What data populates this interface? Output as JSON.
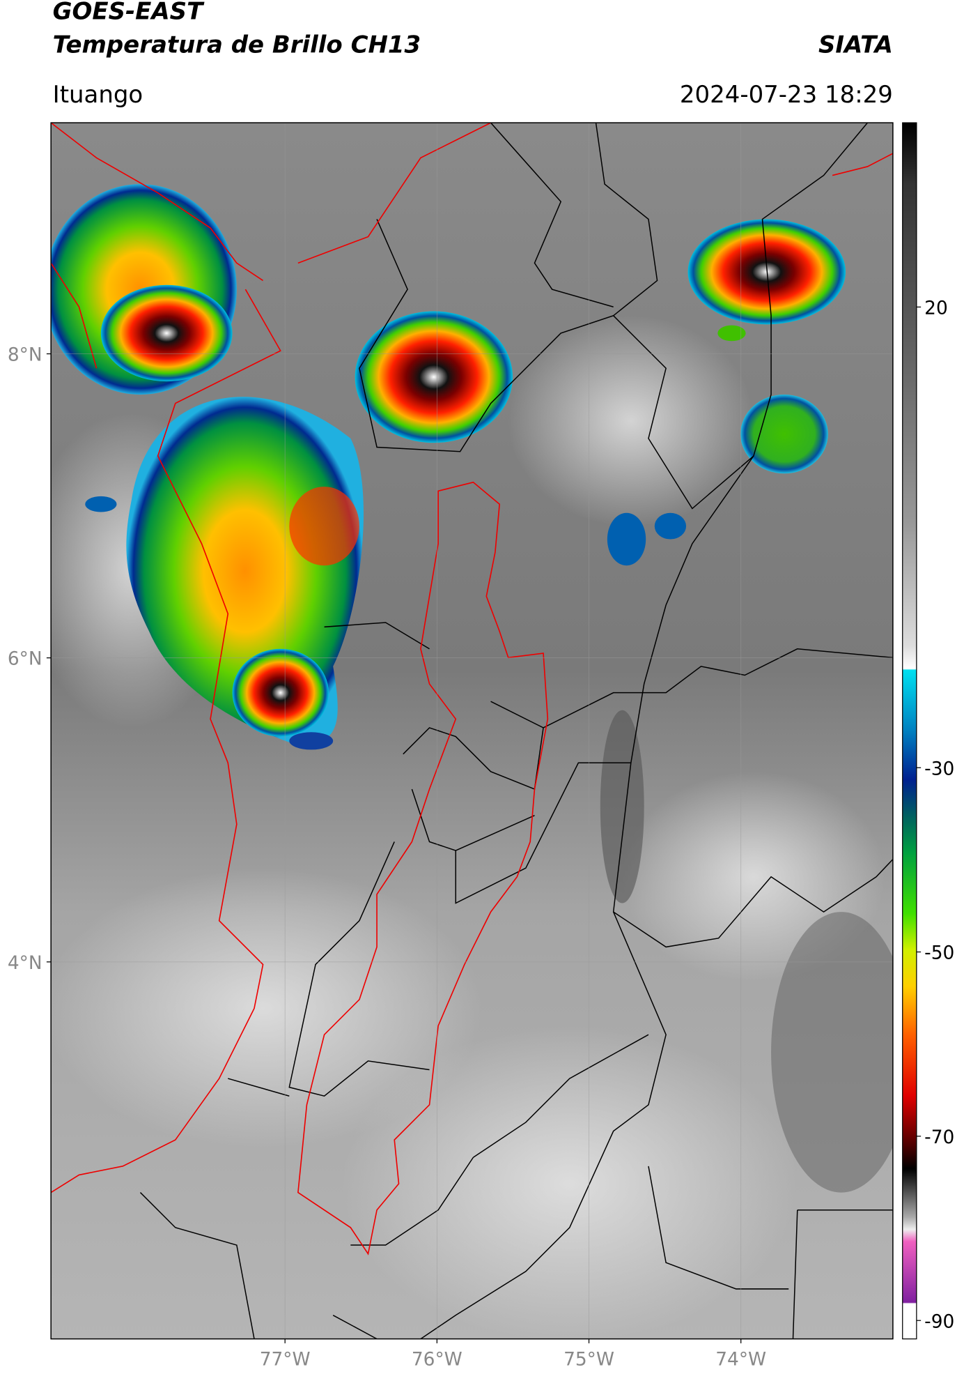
{
  "title": "GOES-EAST",
  "subtitle": "Temperatura de Brillo CH13",
  "source": "SIATA",
  "region": "Ituango",
  "datetime": "2024-07-23 18:29",
  "map": {
    "lonlim": [
      -78.54,
      -73.0
    ],
    "latlim": [
      1.52,
      9.52
    ],
    "lonticks": [
      {
        "value": -77,
        "label": "77°W"
      },
      {
        "value": -76,
        "label": "76°W"
      },
      {
        "value": -75,
        "label": "75°W"
      },
      {
        "value": -74,
        "label": "74°W"
      }
    ],
    "latticks": [
      {
        "value": 8,
        "label": "8°N"
      },
      {
        "value": 6,
        "label": "6°N"
      },
      {
        "value": 4,
        "label": "4°N"
      }
    ]
  },
  "colorbar": {
    "lim": [
      -92,
      40
    ],
    "ticks": [
      20,
      -30,
      -50,
      -70,
      -90
    ]
  }
}
